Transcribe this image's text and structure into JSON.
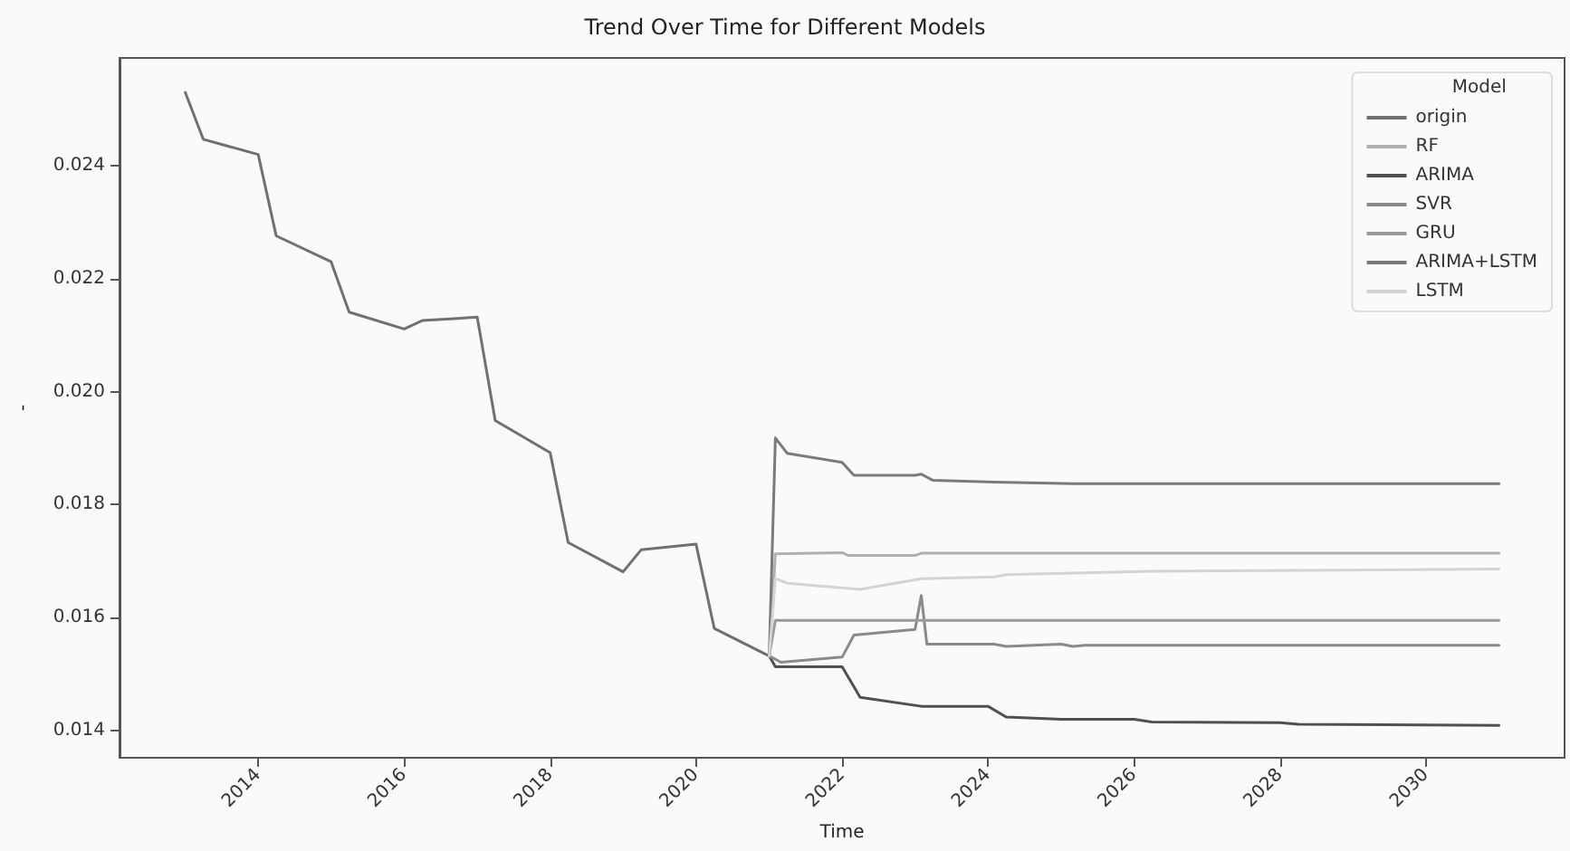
{
  "chart_data": {
    "type": "line",
    "title": "Trend Over Time for Different Models",
    "xlabel": "Time",
    "ylabel": "-",
    "legend_title": "Model",
    "legend": "top right",
    "grid": false,
    "marker": "none",
    "line_style": "solid",
    "xlim": [
      "2012-02-07",
      "2031-11-25"
    ],
    "xticks": [
      {
        "value": "2014-01-01",
        "label": "2014"
      },
      {
        "value": "2016-01-01",
        "label": "2016"
      },
      {
        "value": "2018-01-01",
        "label": "2018"
      },
      {
        "value": "2020-01-01",
        "label": "2020"
      },
      {
        "value": "2022-01-01",
        "label": "2022"
      },
      {
        "value": "2024-01-01",
        "label": "2024"
      },
      {
        "value": "2026-01-01",
        "label": "2026"
      },
      {
        "value": "2028-01-01",
        "label": "2028"
      },
      {
        "value": "2030-01-01",
        "label": "2030"
      }
    ],
    "ylim": [
      0.01352,
      0.02591
    ],
    "yticks": [
      {
        "value": 0.014,
        "label": "0.014"
      },
      {
        "value": 0.016,
        "label": "0.016"
      },
      {
        "value": 0.018,
        "label": "0.018"
      },
      {
        "value": 0.02,
        "label": "0.020"
      },
      {
        "value": 0.022,
        "label": "0.022"
      },
      {
        "value": 0.024,
        "label": "0.024"
      }
    ],
    "series": [
      {
        "name": "origin",
        "color": "#707070",
        "x": [
          "2013-01",
          "2013-04",
          "2014-01",
          "2014-04",
          "2015-01",
          "2015-04",
          "2016-01",
          "2016-04",
          "2017-01",
          "2017-04",
          "2018-01",
          "2018-04",
          "2019-01",
          "2019-04",
          "2020-01",
          "2020-04",
          "2021-01"
        ],
        "values": [
          0.0253,
          0.02447,
          0.0242,
          0.02276,
          0.0223,
          0.02141,
          0.02111,
          0.02126,
          0.02132,
          0.01949,
          0.01892,
          0.01733,
          0.01681,
          0.0172,
          0.0173,
          0.01581,
          0.01532
        ]
      },
      {
        "name": "RF",
        "color": "#b0b0b0",
        "x": [
          "2021-01",
          "2021-02",
          "2022-01",
          "2022-02",
          "2023-01",
          "2023-02",
          "2031-01"
        ],
        "values": [
          0.01532,
          0.01713,
          0.01715,
          0.0171,
          0.0171,
          0.01714,
          0.01714
        ]
      },
      {
        "name": "ARIMA",
        "color": "#505050",
        "x": [
          "2021-01",
          "2021-02",
          "2022-01",
          "2022-04",
          "2023-02",
          "2024-01",
          "2024-04",
          "2025-01",
          "2026-01",
          "2026-04",
          "2028-01",
          "2028-04",
          "2031-01"
        ],
        "values": [
          0.01532,
          0.01513,
          0.01513,
          0.01459,
          0.01443,
          0.01443,
          0.01424,
          0.0142,
          0.0142,
          0.01415,
          0.01414,
          0.01411,
          0.01409
        ]
      },
      {
        "name": "SVR",
        "color": "#8a8a8a",
        "x": [
          "2021-01",
          "2021-03",
          "2022-01",
          "2022-03",
          "2023-01",
          "2023-02",
          "2023-03",
          "2024-02",
          "2024-04",
          "2025-01",
          "2025-03",
          "2025-05",
          "2031-01"
        ],
        "values": [
          0.01532,
          0.01521,
          0.0153,
          0.01569,
          0.01579,
          0.01639,
          0.01553,
          0.01553,
          0.01549,
          0.01553,
          0.01549,
          0.01551,
          0.01551
        ]
      },
      {
        "name": "GRU",
        "color": "#9a9a9a",
        "x": [
          "2021-01",
          "2021-02",
          "2031-01"
        ],
        "values": [
          0.01532,
          0.01595,
          0.01595
        ]
      },
      {
        "name": "ARIMA+LSTM",
        "color": "#7a7a7a",
        "x": [
          "2021-01",
          "2021-02",
          "2021-04",
          "2022-01",
          "2022-03",
          "2023-01",
          "2023-02",
          "2023-04",
          "2024-02",
          "2025-03",
          "2031-01"
        ],
        "values": [
          0.01532,
          0.01918,
          0.01891,
          0.01875,
          0.01852,
          0.01852,
          0.01854,
          0.01843,
          0.0184,
          0.01837,
          0.01837
        ]
      },
      {
        "name": "LSTM",
        "color": "#d3d3d3",
        "x": [
          "2021-01",
          "2021-02",
          "2021-04",
          "2022-04",
          "2023-02",
          "2024-02",
          "2024-04",
          "2026-04",
          "2031-01"
        ],
        "values": [
          0.01532,
          0.01669,
          0.01661,
          0.0165,
          0.01669,
          0.01672,
          0.01676,
          0.01682,
          0.01686
        ]
      }
    ]
  }
}
